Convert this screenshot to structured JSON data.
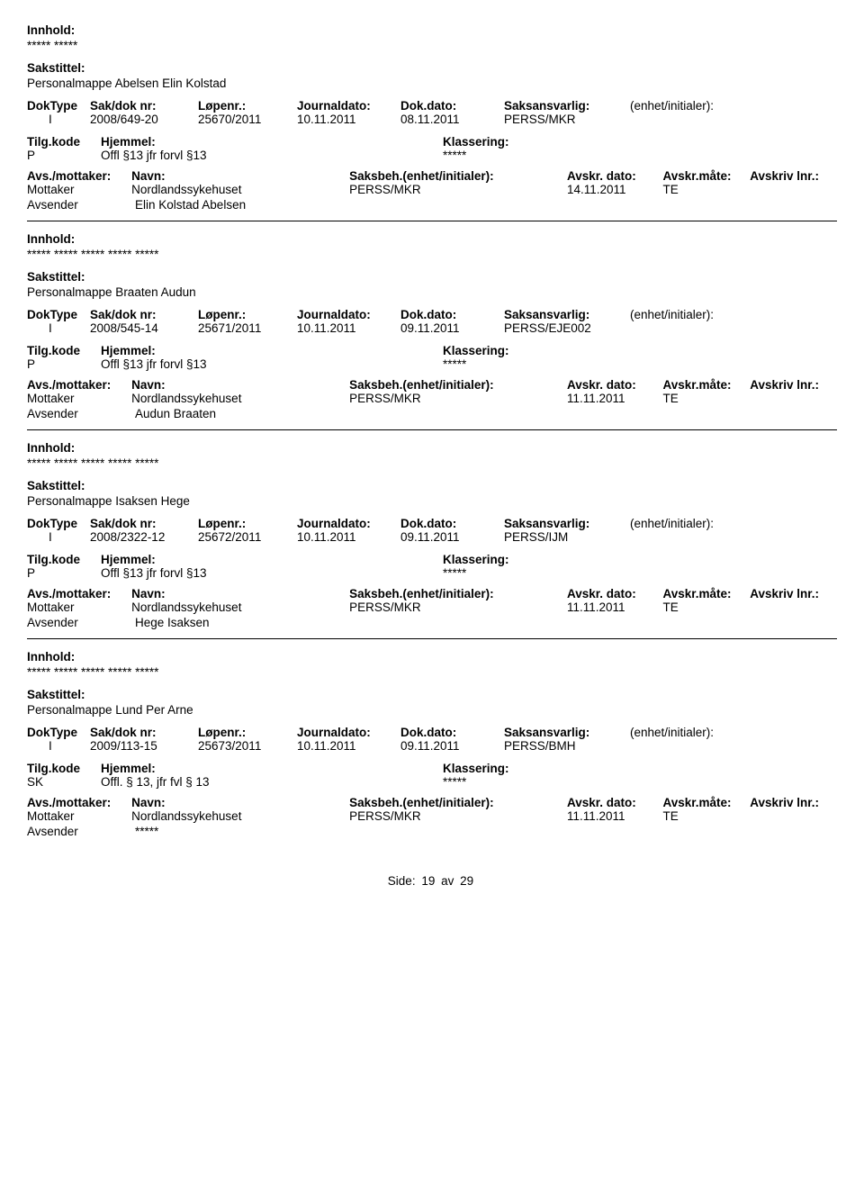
{
  "labels": {
    "innhold": "Innhold:",
    "sakstittel": "Sakstittel:",
    "doktype": "DokType",
    "saknr": "Sak/dok nr:",
    "lopenr": "Løpenr.:",
    "journaldato": "Journaldato:",
    "dokdato": "Dok.dato:",
    "saksansvarlig": "Saksansvarlig:",
    "enhet": "(enhet/initialer):",
    "tilgkode": "Tilg.kode",
    "hjemmel": "Hjemmel:",
    "klassering": "Klassering:",
    "avs_mottaker": "Avs./mottaker:",
    "navn": "Navn:",
    "saksbeh": "Saksbeh.(enhet/initialer):",
    "avskr_dato": "Avskr. dato:",
    "avskr_mate": "Avskr.måte:",
    "avskriv_lnr": "Avskriv lnr.:",
    "mottaker": "Mottaker",
    "avsender": "Avsender",
    "side": "Side:",
    "av": "av"
  },
  "page": {
    "current": "19",
    "total": "29"
  },
  "records": [
    {
      "innhold": "***** *****",
      "sakstittel": "Personalmappe Abelsen Elin Kolstad",
      "doktype": "I",
      "saknr": "2008/649-20",
      "lopenr": "25670/2011",
      "journaldato": "10.11.2011",
      "dokdato": "08.11.2011",
      "saksansvarlig": "PERSS/MKR",
      "tilgkode": "P",
      "hjemmel": "Offl §13 jfr forvl §13",
      "klassering_value": "*****",
      "mottaker_navn": "Nordlandssykehuset",
      "mottaker_saksbeh": "PERSS/MKR",
      "avskr_dato": "14.11.2011",
      "avskr_mate": "TE",
      "avsender_navn": "Elin Kolstad Abelsen"
    },
    {
      "innhold": "***** ***** ***** ***** *****",
      "sakstittel": "Personalmappe Braaten Audun",
      "doktype": "I",
      "saknr": "2008/545-14",
      "lopenr": "25671/2011",
      "journaldato": "10.11.2011",
      "dokdato": "09.11.2011",
      "saksansvarlig": "PERSS/EJE002",
      "tilgkode": "P",
      "hjemmel": "Offl §13 jfr forvl §13",
      "klassering_value": "*****",
      "mottaker_navn": "Nordlandssykehuset",
      "mottaker_saksbeh": "PERSS/MKR",
      "avskr_dato": "11.11.2011",
      "avskr_mate": "TE",
      "avsender_navn": "Audun Braaten"
    },
    {
      "innhold": "***** ***** ***** ***** *****",
      "sakstittel": "Personalmappe Isaksen Hege",
      "doktype": "I",
      "saknr": "2008/2322-12",
      "lopenr": "25672/2011",
      "journaldato": "10.11.2011",
      "dokdato": "09.11.2011",
      "saksansvarlig": "PERSS/IJM",
      "tilgkode": "P",
      "hjemmel": "Offl §13 jfr forvl §13",
      "klassering_value": "*****",
      "mottaker_navn": "Nordlandssykehuset",
      "mottaker_saksbeh": "PERSS/MKR",
      "avskr_dato": "11.11.2011",
      "avskr_mate": "TE",
      "avsender_navn": "Hege Isaksen"
    },
    {
      "innhold": "***** ***** ***** ***** *****",
      "sakstittel": "Personalmappe Lund Per Arne",
      "doktype": "I",
      "saknr": "2009/113-15",
      "lopenr": "25673/2011",
      "journaldato": "10.11.2011",
      "dokdato": "09.11.2011",
      "saksansvarlig": "PERSS/BMH",
      "tilgkode": "SK",
      "hjemmel": "Offl. § 13, jfr fvl § 13",
      "klassering_value": "*****",
      "mottaker_navn": "Nordlandssykehuset",
      "mottaker_saksbeh": "PERSS/MKR",
      "avskr_dato": "11.11.2011",
      "avskr_mate": "TE",
      "avsender_navn": "*****"
    }
  ]
}
